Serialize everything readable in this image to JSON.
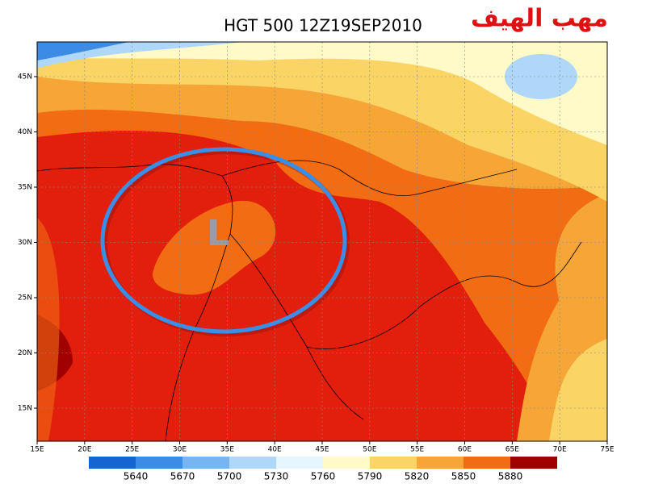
{
  "title": "HGT 500 12Z19SEP2010",
  "overlay_title": "مهب الهيف",
  "low_label": "L",
  "lon_labels": [
    "15E",
    "20E",
    "25E",
    "30E",
    "35E",
    "40E",
    "45E",
    "50E",
    "55E",
    "60E",
    "65E",
    "70E",
    "75E"
  ],
  "lat_labels": [
    "45N",
    "40N",
    "35N",
    "30N",
    "25N",
    "20N",
    "15N"
  ],
  "colorbar_labels": [
    5640,
    5670,
    5700,
    5730,
    5760,
    5790,
    5820,
    5850,
    5880
  ]
}
